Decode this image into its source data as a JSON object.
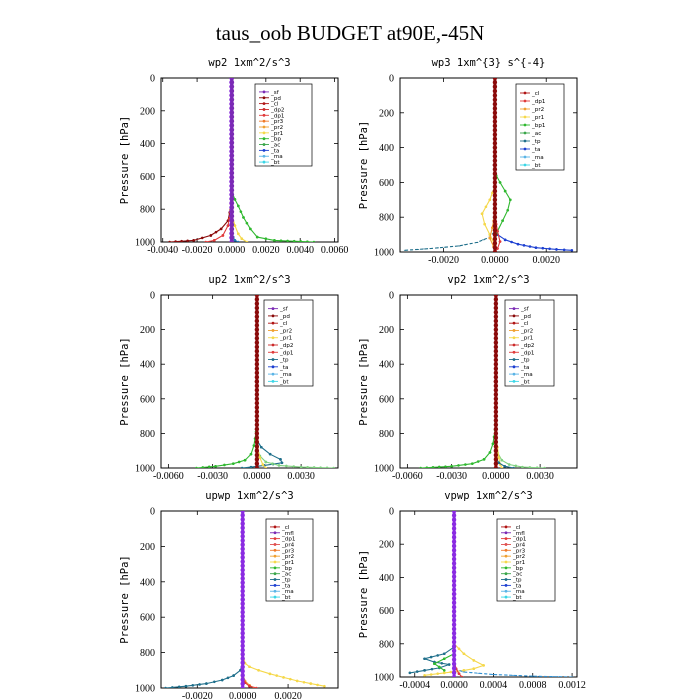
{
  "title": "taus_oob  BUDGET at90E,-45N",
  "chart_data": [
    {
      "type": "line",
      "title": "wp2  1xm^2/s^3",
      "ylabel": "Pressure [hPa]",
      "xlim": [
        -0.0041,
        0.0062
      ],
      "xticks": [
        "-0.0040",
        "-0.0020",
        "0.0000",
        "0.0020",
        "0.0040",
        "0.0060"
      ],
      "xtick_values": [
        -0.004,
        -0.002,
        0,
        0.002,
        0.004,
        0.006
      ],
      "ylim": [
        1000,
        0
      ],
      "yticks": [
        "0",
        "200",
        "400",
        "600",
        "800",
        "1000"
      ],
      "legend": [
        "_sf",
        "_pd",
        "_cl",
        "_dp2",
        "_dp1",
        "_pr3",
        "_pr2",
        "_pr1",
        "_bp",
        "_ac",
        "_ta",
        "_ma",
        "_bt"
      ],
      "legend_position": "top-right",
      "series": [
        {
          "name": "_pd",
          "color": "#8b0a0a",
          "marker": "dot",
          "x": [
            -0.0036,
            -0.0022,
            -0.0012,
            -0.0006,
            -0.0002,
            -0.0001,
            -3e-05,
            0,
            0,
            0
          ],
          "y": [
            1000,
            990,
            960,
            920,
            870,
            820,
            760,
            700,
            500,
            0
          ]
        },
        {
          "name": "_dp1",
          "color": "#e03a3a",
          "marker": "dot",
          "x": [
            -0.0015,
            -0.001,
            -0.0005,
            -0.0002,
            -5e-05,
            0,
            0
          ],
          "y": [
            1000,
            990,
            960,
            900,
            820,
            720,
            0
          ]
        },
        {
          "name": "_pr2",
          "color": "#f5d84a",
          "marker": "dot",
          "x": [
            0.0009,
            0.0006,
            0.0004,
            0.0002,
            5e-05,
            0,
            0
          ],
          "y": [
            1000,
            980,
            950,
            900,
            840,
            760,
            0
          ]
        },
        {
          "name": "_bp",
          "color": "#2fb82f",
          "marker": "dot",
          "x": [
            0.0048,
            0.0025,
            0.0015,
            0.0011,
            0.0007,
            0.0004,
            0.0002,
            5e-05,
            0
          ],
          "y": [
            1000,
            990,
            970,
            920,
            850,
            780,
            740,
            700,
            0
          ]
        },
        {
          "name": "_ac",
          "color": "#1f77b4",
          "marker": "dot",
          "x": [
            0.0004,
            0.0002,
            0.0001,
            0,
            0
          ],
          "y": [
            1000,
            990,
            970,
            950,
            0
          ]
        },
        {
          "name": "_cl",
          "color": "#8a2be2",
          "marker": "dot",
          "x": [
            0,
            0,
            0
          ],
          "y": [
            0,
            500,
            1000
          ]
        },
        {
          "name": "_sf",
          "color": "#7b2ab5",
          "marker": "dot",
          "x": [
            3e-05,
            3e-05,
            3e-05
          ],
          "y": [
            0,
            500,
            1000
          ]
        }
      ]
    },
    {
      "type": "line",
      "title": "wp3  1xm^{3} s^{-4}",
      "ylabel": "Pressure [hPa]",
      "xlim": [
        -0.0037,
        0.0032
      ],
      "xticks": [
        "-0.0020",
        "0.0000",
        "0.0020"
      ],
      "xtick_values": [
        -0.002,
        0,
        0.002
      ],
      "ylim": [
        1000,
        0
      ],
      "yticks": [
        "0",
        "200",
        "400",
        "600",
        "800",
        "1000"
      ],
      "legend": [
        "_cl",
        "_dp1",
        "_pr2",
        "_pr1",
        "_bp1",
        "_ac",
        "_tp",
        "_ta",
        "_ma",
        "_bt"
      ],
      "legend_position": "top-right",
      "series": [
        {
          "name": "_ta",
          "color": "#1c3fd1",
          "marker": "dot",
          "x": [
            0.003,
            0.0024,
            0.0016,
            0.0009,
            0.0004,
            0.0001,
            0,
            0
          ],
          "y": [
            990,
            985,
            975,
            955,
            930,
            900,
            860,
            0
          ]
        },
        {
          "name": "_tp",
          "color": "#1f6f8b",
          "marker": "dash",
          "x": [
            -0.0035,
            -0.0025,
            -0.0014,
            -0.0007,
            -0.0002,
            0,
            0
          ],
          "y": [
            990,
            980,
            965,
            945,
            915,
            880,
            0
          ]
        },
        {
          "name": "_bp1",
          "color": "#2fb82f",
          "marker": "dot",
          "x": [
            5e-05,
            0.0002,
            0.0004,
            0.0006,
            0.0005,
            0.0003,
            0.0001,
            0,
            0
          ],
          "y": [
            560,
            600,
            650,
            700,
            760,
            820,
            880,
            940,
            1000
          ]
        },
        {
          "name": "_pr1",
          "color": "#f5d84a",
          "marker": "dot",
          "x": [
            0,
            -0.0002,
            -0.0005,
            -0.0004,
            -0.0002,
            0,
            0
          ],
          "y": [
            620,
            700,
            780,
            840,
            900,
            960,
            1000
          ]
        },
        {
          "name": "_pr2",
          "color": "#f0a030",
          "marker": "dot",
          "x": [
            0,
            -0.0001,
            -0.0002,
            -5e-05,
            0
          ],
          "y": [
            780,
            860,
            920,
            970,
            1000
          ]
        },
        {
          "name": "_dp1",
          "color": "#e03a3a",
          "marker": "dot",
          "x": [
            0,
            0.0001,
            0.0002,
            0.0001,
            0
          ],
          "y": [
            800,
            880,
            940,
            980,
            1000
          ]
        },
        {
          "name": "_cl",
          "color": "#8b0a0a",
          "marker": "dot",
          "x": [
            0,
            0,
            0
          ],
          "y": [
            0,
            500,
            1000
          ]
        }
      ]
    },
    {
      "type": "line",
      "title": "up2  1xm^2/s^3",
      "ylabel": "Pressure [hPa]",
      "xlim": [
        -0.0065,
        0.0055
      ],
      "xticks": [
        "-0.0060",
        "-0.0030",
        "0.0000",
        "0.0030"
      ],
      "xtick_values": [
        -0.006,
        -0.003,
        0,
        0.003
      ],
      "ylim": [
        1000,
        0
      ],
      "yticks": [
        "0",
        "200",
        "400",
        "600",
        "800",
        "1000"
      ],
      "legend": [
        "_sf",
        "_pd",
        "_cl",
        "_pr2",
        "_pr1",
        "_dp2",
        "_dp1",
        "_tp",
        "_ta",
        "_ma",
        "_bt"
      ],
      "legend_position": "top-right",
      "series": [
        {
          "name": "_dp1",
          "color": "#2fb82f",
          "marker": "dot",
          "x": [
            -0.0041,
            -0.0028,
            -0.0016,
            -0.0008,
            -0.0004,
            -0.0002,
            -5e-05,
            0
          ],
          "y": [
            1000,
            990,
            975,
            955,
            920,
            870,
            790,
            700
          ]
        },
        {
          "name": "_tp",
          "color": "#1f6f8b",
          "marker": "dot",
          "x": [
            -0.001,
            -0.0004,
            0.0005,
            0.0017,
            0.0016,
            0.0009,
            0.0003,
            0
          ],
          "y": [
            1000,
            995,
            985,
            970,
            950,
            920,
            880,
            840
          ]
        },
        {
          "name": "_dp2",
          "color": "#7fd17f",
          "marker": "dot",
          "x": [
            0.0052,
            0.003,
            0.0015,
            0.0006,
            0.0002,
            0
          ],
          "y": [
            1000,
            995,
            985,
            965,
            930,
            880
          ]
        },
        {
          "name": "_pr2",
          "color": "#f5d84a",
          "marker": "dot",
          "x": [
            0.0006,
            0.0004,
            0.0002,
            5e-05,
            0
          ],
          "y": [
            1000,
            980,
            940,
            880,
            800
          ]
        },
        {
          "name": "_cl",
          "color": "#8b0a0a",
          "marker": "dot",
          "x": [
            0,
            0,
            0
          ],
          "y": [
            0,
            500,
            1000
          ]
        }
      ]
    },
    {
      "type": "line",
      "title": "vp2  1xm^2/s^3",
      "ylabel": "Pressure [hPa]",
      "xlim": [
        -0.0065,
        0.0055
      ],
      "xticks": [
        "-0.0060",
        "-0.0030",
        "0.0000",
        "0.0030"
      ],
      "xtick_values": [
        -0.006,
        -0.003,
        0,
        0.003
      ],
      "ylim": [
        1000,
        0
      ],
      "yticks": [
        "0",
        "200",
        "400",
        "600",
        "800",
        "1000"
      ],
      "legend": [
        "_sf",
        "_pd",
        "_cl",
        "_pr2",
        "_pr1",
        "_dp2",
        "_dp1",
        "_tp",
        "_ta",
        "_ma",
        "_bt"
      ],
      "legend_position": "top-right",
      "series": [
        {
          "name": "_dp1",
          "color": "#2fb82f",
          "marker": "dot",
          "x": [
            -0.0051,
            -0.003,
            -0.0016,
            -0.0008,
            -0.0004,
            -0.0002,
            -5e-05,
            0
          ],
          "y": [
            1000,
            990,
            975,
            950,
            910,
            860,
            780,
            700
          ]
        },
        {
          "name": "_dp2",
          "color": "#7fd17f",
          "marker": "dot",
          "x": [
            0.0033,
            0.0018,
            0.0009,
            0.0004,
            0.0001,
            0
          ],
          "y": [
            1000,
            995,
            980,
            955,
            910,
            860
          ]
        },
        {
          "name": "_pr1",
          "color": "#f5d84a",
          "marker": "dot",
          "x": [
            0.0004,
            0.0003,
            0.0002,
            0.0001,
            0
          ],
          "y": [
            1000,
            980,
            940,
            880,
            820
          ]
        },
        {
          "name": "_tp",
          "color": "#1f6f8b",
          "marker": "dot",
          "x": [
            0.0012,
            0.0006,
            0.0002,
            0
          ],
          "y": [
            1000,
            990,
            970,
            940
          ]
        },
        {
          "name": "_cl",
          "color": "#8b0a0a",
          "marker": "dot",
          "x": [
            0,
            0,
            0
          ],
          "y": [
            0,
            500,
            1000
          ]
        }
      ]
    },
    {
      "type": "line",
      "title": "upwp  1xm^2/s^3",
      "ylabel": "Pressure [hPa]",
      "xlim": [
        -0.0036,
        0.0042
      ],
      "xticks": [
        "-0.0020",
        "0.0000",
        "0.0020"
      ],
      "xtick_values": [
        -0.002,
        0,
        0.002
      ],
      "ylim": [
        1000,
        0
      ],
      "yticks": [
        "0",
        "200",
        "400",
        "600",
        "800",
        "1000"
      ],
      "legend": [
        "_cl",
        "_mfl",
        "_dp1",
        "_pr4",
        "_pr3",
        "_pr2",
        "_pr1",
        "_bp",
        "_ac",
        "_tp",
        "_ta",
        "_ma",
        "_bt"
      ],
      "legend_position": "top-right",
      "series": [
        {
          "name": "_pr1",
          "color": "#f5d84a",
          "marker": "dot",
          "x": [
            0.0036,
            0.003,
            0.0024,
            0.0018,
            0.0012,
            0.0007,
            0.0003,
            0.0001,
            0
          ],
          "y": [
            990,
            975,
            960,
            940,
            920,
            900,
            880,
            860,
            800
          ]
        },
        {
          "name": "_tp",
          "color": "#1f6f8b",
          "marker": "dot",
          "x": [
            -0.0034,
            -0.0025,
            -0.0016,
            -0.0009,
            -0.0004,
            -0.0001,
            0
          ],
          "y": [
            1000,
            990,
            975,
            955,
            930,
            900,
            860
          ]
        },
        {
          "name": "_pr2",
          "color": "#f0a030",
          "marker": "dot",
          "x": [
            0.0005,
            0.0003,
            0.0001,
            0
          ],
          "y": [
            1000,
            985,
            960,
            920
          ]
        },
        {
          "name": "_dp1",
          "color": "#e03a3a",
          "marker": "dot",
          "x": [
            0.0006,
            0.0003,
            0.0001,
            0
          ],
          "y": [
            1000,
            990,
            970,
            940
          ]
        },
        {
          "name": "_cl",
          "color": "#8a2be2",
          "marker": "dot",
          "x": [
            0,
            0,
            0
          ],
          "y": [
            0,
            500,
            1000
          ]
        }
      ]
    },
    {
      "type": "line",
      "title": "vpwp  1xm^2/s^3",
      "ylabel": "Pressure [hPa]",
      "xlim": [
        -0.00055,
        0.00125
      ],
      "xticks": [
        "-0.0004",
        "0.0000",
        "0.0004",
        "0.0008",
        "0.0012"
      ],
      "xtick_values": [
        -0.0004,
        0,
        0.0004,
        0.0008,
        0.0012
      ],
      "ylim": [
        1000,
        0
      ],
      "yticks": [
        "0",
        "200",
        "400",
        "600",
        "800",
        "1000"
      ],
      "legend": [
        "_cl",
        "_mfl",
        "_dp1",
        "_pr4",
        "_pr3",
        "_pr2",
        "_pr1",
        "_bp",
        "_ac",
        "_tp",
        "_ta",
        "_ma",
        "_bt"
      ],
      "legend_position": "top-right",
      "series": [
        {
          "name": "_pr1",
          "color": "#f5d84a",
          "marker": "dot",
          "x": [
            -0.0003,
            -0.0001,
            0.0001,
            0.0002,
            0.0003,
            0.0002,
            0.0001,
            0
          ],
          "y": [
            990,
            975,
            960,
            950,
            930,
            900,
            860,
            800
          ]
        },
        {
          "name": "_tp",
          "color": "#1f6f8b",
          "marker": "dot",
          "x": [
            -0.00045,
            -0.0003,
            -0.00015,
            -5e-05,
            -0.0002,
            -0.0003,
            -0.0001,
            0
          ],
          "y": [
            975,
            960,
            945,
            925,
            910,
            890,
            860,
            820
          ]
        },
        {
          "name": "_ac",
          "color": "#2fb82f",
          "marker": "dot",
          "x": [
            -0.0001,
            -0.00015,
            -0.0002,
            -0.0001,
            0
          ],
          "y": [
            960,
            940,
            920,
            890,
            860
          ]
        },
        {
          "name": "_ta",
          "color": "#2f8fd1",
          "marker": "dash",
          "x": [
            0.0012,
            0.0008,
            0.0004,
            0.0001,
            0
          ],
          "y": [
            1000,
            995,
            985,
            970,
            950
          ]
        },
        {
          "name": "_dp1",
          "color": "#e03a3a",
          "marker": "dot",
          "x": [
            8e-05,
            5e-05,
            2e-05,
            0
          ],
          "y": [
            1000,
            980,
            950,
            900
          ]
        },
        {
          "name": "_cl",
          "color": "#8a2be2",
          "marker": "dot",
          "x": [
            0,
            0,
            0
          ],
          "y": [
            0,
            500,
            1000
          ]
        }
      ]
    }
  ],
  "legend_colors": {
    "_sf": "#7b2ab5",
    "_pd": "#8b0a0a",
    "_cl": "#b01515",
    "_mfl": "#7b2ab5",
    "_dp2": "#cc2a2a",
    "_dp1": "#e03a3a",
    "_pr4": "#e05050",
    "_pr3": "#f07a2a",
    "_pr2": "#f0a030",
    "_pr1": "#f5d84a",
    "_bp": "#2fb82f",
    "_bp1": "#2fb82f",
    "_ac": "#3aa64a",
    "_tp": "#1f6f8b",
    "_ta": "#1c3fd1",
    "_ma": "#5ab4e6",
    "_bt": "#3ad6e6"
  }
}
